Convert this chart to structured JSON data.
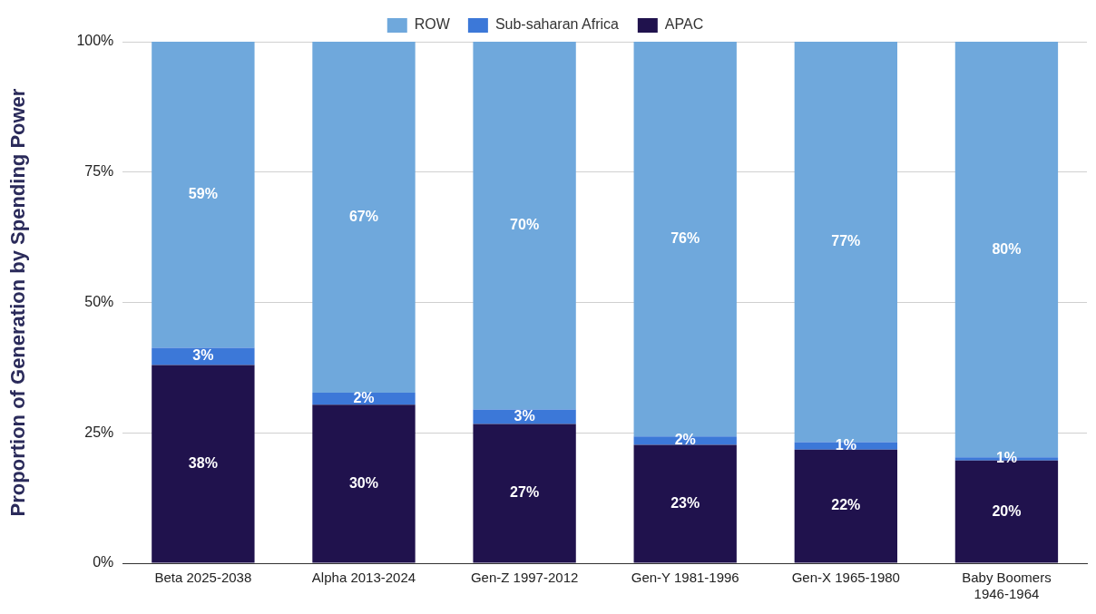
{
  "chart_data": {
    "type": "bar",
    "stacked": true,
    "ylabel": "Proportion of Generation by Spending Power",
    "categories": [
      "Beta 2025-2038",
      "Alpha 2013-2024",
      "Gen-Z 1997-2012",
      "Gen-Y 1981-1996",
      "Gen-X 1965-1980",
      "Baby Boomers 1946-1964"
    ],
    "series": [
      {
        "name": "APAC",
        "color": "#20124d",
        "values": [
          38,
          30.4,
          26.7,
          22.7,
          21.8,
          19.7
        ],
        "value_labels": [
          "38%",
          "30%",
          "27%",
          "23%",
          "22%",
          "20%"
        ]
      },
      {
        "name": "Sub-saharan Africa",
        "color": "#3c78d8",
        "values": [
          3.3,
          2.3,
          2.8,
          1.6,
          1.4,
          0.6
        ],
        "value_labels": [
          "3%",
          "2%",
          "3%",
          "2%",
          "1%",
          "1%"
        ]
      },
      {
        "name": "ROW",
        "color": "#6fa8dc",
        "values": [
          58.7,
          67.3,
          70.5,
          75.7,
          76.8,
          79.7
        ],
        "value_labels": [
          "59%",
          "67%",
          "70%",
          "76%",
          "77%",
          "80%"
        ]
      }
    ],
    "ylim": [
      0,
      100
    ],
    "yticks": [
      {
        "value": 0,
        "label": "0%"
      },
      {
        "value": 25,
        "label": "25%"
      },
      {
        "value": 50,
        "label": "50%"
      },
      {
        "value": 75,
        "label": "75%"
      },
      {
        "value": 100,
        "label": "100%"
      }
    ],
    "grid": "y",
    "legend": "top"
  }
}
